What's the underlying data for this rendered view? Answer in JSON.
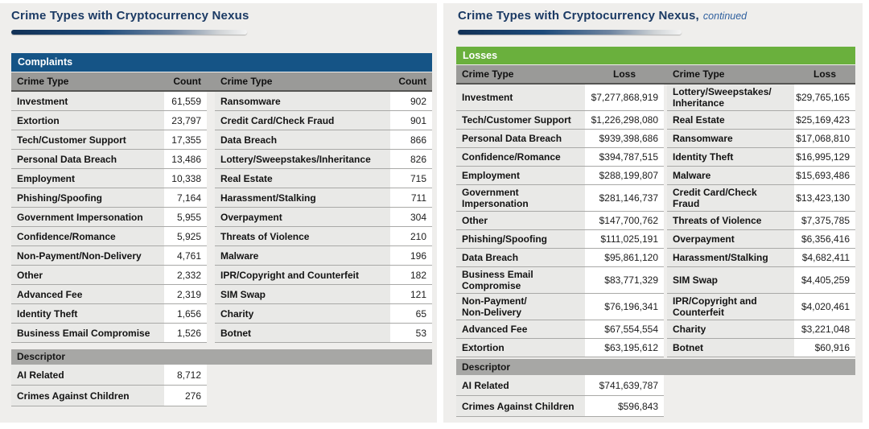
{
  "colors": {
    "title_navy": "#1b3a64",
    "continued_blue": "#2e5f9e",
    "complaints_blue": "#155486",
    "losses_green": "#6ab03d",
    "header_gray": "#9a9a98",
    "descriptor_gray": "#a7a7a5",
    "type_cell_bg": "#e9e9e7",
    "value_cell_bg": "#ffffff",
    "page_bg": "#efeeec",
    "row_border": "#a9a9a7"
  },
  "left_page": {
    "title": "Crime Types with Cryptocurrency Nexus",
    "section_header": "Complaints",
    "col_headers": [
      "Crime Type",
      "Count",
      "Crime Type",
      "Count"
    ],
    "rows": [
      [
        "Investment",
        "61,559",
        "Ransomware",
        "902"
      ],
      [
        "Extortion",
        "23,797",
        "Credit Card/Check Fraud",
        "901"
      ],
      [
        "Tech/Customer Support",
        "17,355",
        "Data Breach",
        "866"
      ],
      [
        "Personal Data Breach",
        "13,486",
        "Lottery/Sweepstakes/Inheritance",
        "826"
      ],
      [
        "Employment",
        "10,338",
        "Real Estate",
        "715"
      ],
      [
        "Phishing/Spoofing",
        "7,164",
        "Harassment/Stalking",
        "711"
      ],
      [
        "Government Impersonation",
        "5,955",
        "Overpayment",
        "304"
      ],
      [
        "Confidence/Romance",
        "5,925",
        "Threats of Violence",
        "210"
      ],
      [
        "Non-Payment/Non-Delivery",
        "4,761",
        "Malware",
        "196"
      ],
      [
        "Other",
        "2,332",
        "IPR/Copyright and Counterfeit",
        "182"
      ],
      [
        "Advanced Fee",
        "2,319",
        "SIM Swap",
        "121"
      ],
      [
        "Identity Theft",
        "1,656",
        "Charity",
        "65"
      ],
      [
        "Business Email Compromise",
        "1,526",
        "Botnet",
        "53"
      ]
    ],
    "descriptor_header": "Descriptor",
    "descriptor_rows": [
      [
        "AI Related",
        "8,712"
      ],
      [
        "Crimes Against Children",
        "276"
      ]
    ]
  },
  "right_page": {
    "title": "Crime Types with Cryptocurrency Nexus,",
    "title_continued": "continued",
    "section_header": "Losses",
    "col_headers": [
      "Crime Type",
      "Loss",
      "Crime Type",
      "Loss"
    ],
    "rows": [
      [
        "Investment",
        "$7,277,868,919",
        "Lottery/Sweepstakes/\nInheritance",
        "$29,765,165"
      ],
      [
        "Tech/Customer Support",
        "$1,226,298,080",
        "Real Estate",
        "$25,169,423"
      ],
      [
        "Personal Data Breach",
        "$939,398,686",
        "Ransomware",
        "$17,068,810"
      ],
      [
        "Confidence/Romance",
        "$394,787,515",
        "Identity Theft",
        "$16,995,129"
      ],
      [
        "Employment",
        "$288,199,807",
        "Malware",
        "$15,693,486"
      ],
      [
        "Government\nImpersonation",
        "$281,146,737",
        "Credit Card/Check\nFraud",
        "$13,423,130"
      ],
      [
        "Other",
        "$147,700,762",
        "Threats of Violence",
        "$7,375,785"
      ],
      [
        "Phishing/Spoofing",
        "$111,025,191",
        "Overpayment",
        "$6,356,416"
      ],
      [
        "Data Breach",
        "$95,861,120",
        "Harassment/Stalking",
        "$4,682,411"
      ],
      [
        "Business Email\nCompromise",
        "$83,771,329",
        "SIM Swap",
        "$4,405,259"
      ],
      [
        "Non-Payment/\nNon-Delivery",
        "$76,196,341",
        "IPR/Copyright and\nCounterfeit",
        "$4,020,461"
      ],
      [
        "Advanced Fee",
        "$67,554,554",
        "Charity",
        "$3,221,048"
      ],
      [
        "Extortion",
        "$63,195,612",
        "Botnet",
        "$60,916"
      ]
    ],
    "descriptor_header": "Descriptor",
    "descriptor_rows": [
      [
        "AI Related",
        "$741,639,787"
      ],
      [
        "Crimes Against Children",
        "$596,843"
      ]
    ]
  }
}
